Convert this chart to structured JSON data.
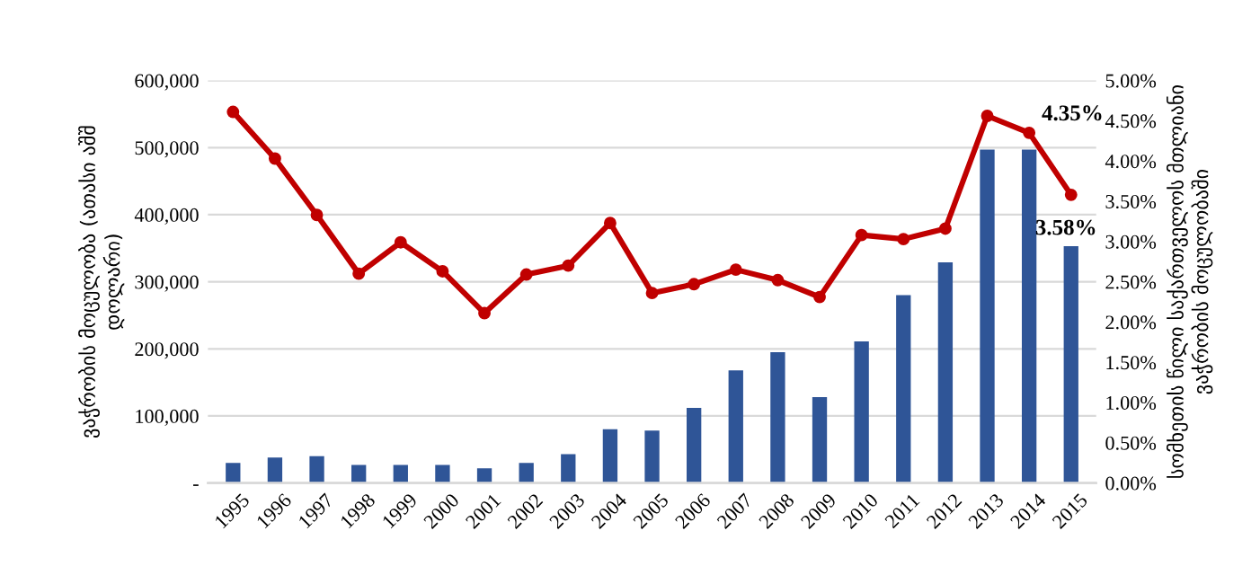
{
  "chart_data": {
    "type": "bar",
    "ylabel": "ვაჭრობის მოცულობა (ათასი აშშ\nდოლარი)",
    "y2label": "სომხეთის წილი საქართველოს მთლიანი\nვაჭრობის მოცულობაში",
    "categories": [
      "1995",
      "1996",
      "1997",
      "1998",
      "1999",
      "2000",
      "2001",
      "2002",
      "2003",
      "2004",
      "2005",
      "2006",
      "2007",
      "2008",
      "2009",
      "2010",
      "2011",
      "2012",
      "2013",
      "2014",
      "2015"
    ],
    "series": [
      {
        "color": "#2f5597",
        "values": [
          30000,
          38000,
          40000,
          27000,
          27000,
          27000,
          22000,
          30000,
          43000,
          80000,
          78000,
          112000,
          168000,
          195000,
          128000,
          211000,
          280000,
          329000,
          497000,
          497000,
          353000
        ]
      },
      {
        "type": "line",
        "axis": "y2",
        "color": "#c00000",
        "marker": "circle",
        "values": [
          4.61,
          4.03,
          3.33,
          2.6,
          2.99,
          2.63,
          2.11,
          2.59,
          2.7,
          3.23,
          2.36,
          2.47,
          2.65,
          2.52,
          2.31,
          3.08,
          3.03,
          3.16,
          4.56,
          4.35,
          3.58
        ],
        "value_labels": [
          null,
          null,
          null,
          null,
          null,
          null,
          null,
          null,
          null,
          null,
          null,
          null,
          null,
          null,
          null,
          null,
          null,
          null,
          null,
          "4.35%",
          "3.58%"
        ]
      }
    ],
    "ylim": [
      0,
      600000
    ],
    "yticks": [
      {
        "value": 0,
        "label": "-"
      },
      {
        "value": 100000,
        "label": "100,000"
      },
      {
        "value": 200000,
        "label": "200,000"
      },
      {
        "value": 300000,
        "label": "300,000"
      },
      {
        "value": 400000,
        "label": "400,000"
      },
      {
        "value": 500000,
        "label": "500,000"
      },
      {
        "value": 600000,
        "label": "600,000"
      }
    ],
    "y2lim": [
      0,
      5
    ],
    "y2ticks": [
      {
        "value": 0,
        "label": "0.00%"
      },
      {
        "value": 0.5,
        "label": "0.50%"
      },
      {
        "value": 1,
        "label": "1.00%"
      },
      {
        "value": 1.5,
        "label": "1.50%"
      },
      {
        "value": 2,
        "label": "2.00%"
      },
      {
        "value": 2.5,
        "label": "2.50%"
      },
      {
        "value": 3,
        "label": "3.00%"
      },
      {
        "value": 3.5,
        "label": "3.50%"
      },
      {
        "value": 4,
        "label": "4.00%"
      },
      {
        "value": 4.5,
        "label": "4.50%"
      },
      {
        "value": 5,
        "label": "5.00%"
      }
    ],
    "grid": "y"
  }
}
